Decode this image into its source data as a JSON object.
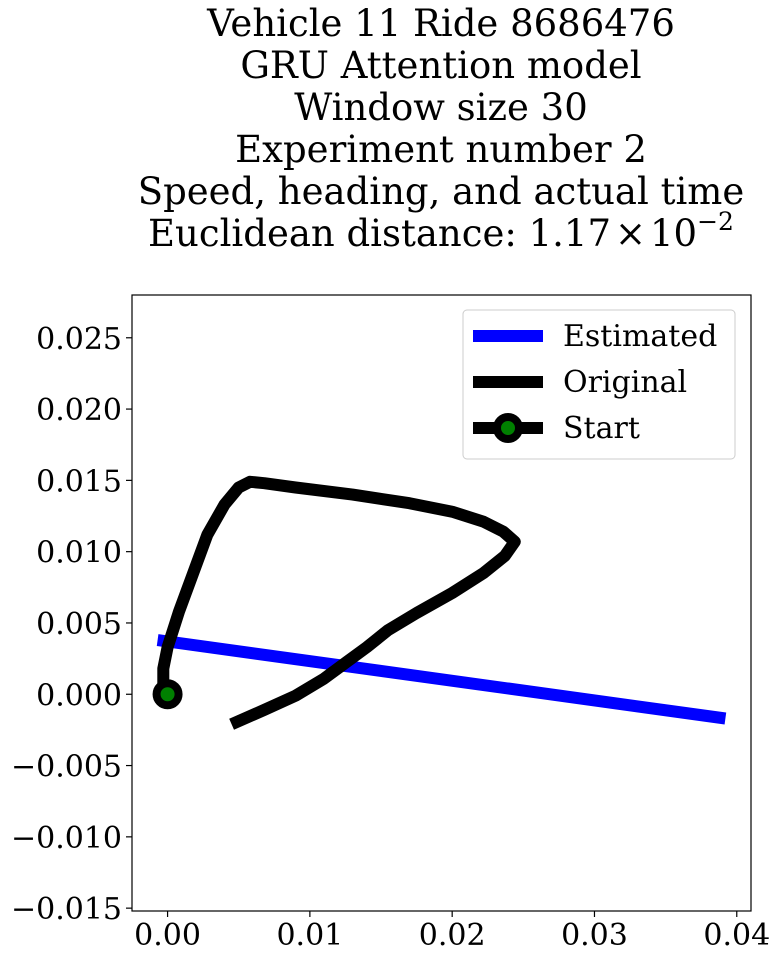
{
  "chart_data": {
    "type": "line",
    "title_lines": [
      "Vehicle 11 Ride 8686476",
      "GRU Attention model",
      "Window size 30",
      "Experiment number 2",
      "Speed, heading, and actual time"
    ],
    "title_last_line": {
      "prefix": "Euclidean distance: ",
      "mantissa": "1.17",
      "times": "×",
      "base": "10",
      "exponent": "−2"
    },
    "xlabel": "",
    "ylabel": "",
    "xlim": [
      -0.0025,
      0.041
    ],
    "ylim": [
      -0.0152,
      0.028
    ],
    "x_ticks": [
      {
        "value": 0.0,
        "label": "0.00"
      },
      {
        "value": 0.01,
        "label": "0.01"
      },
      {
        "value": 0.02,
        "label": "0.02"
      },
      {
        "value": 0.03,
        "label": "0.03"
      },
      {
        "value": 0.04,
        "label": "0.04"
      }
    ],
    "y_ticks": [
      {
        "value": 0.025,
        "label": "0.025"
      },
      {
        "value": 0.02,
        "label": "0.020"
      },
      {
        "value": 0.015,
        "label": "0.015"
      },
      {
        "value": 0.01,
        "label": "0.010"
      },
      {
        "value": 0.005,
        "label": "0.005"
      },
      {
        "value": 0.0,
        "label": "0.000"
      },
      {
        "value": -0.005,
        "label": "−0.005"
      },
      {
        "value": -0.01,
        "label": "−0.010"
      },
      {
        "value": -0.015,
        "label": "−0.015"
      }
    ],
    "grid": false,
    "legend_position": "top-right",
    "series": [
      {
        "name": "Estimated",
        "color": "#0000ff",
        "points": [
          [
            -0.0007,
            0.0038
          ],
          [
            0.0392,
            -0.0017
          ]
        ]
      },
      {
        "name": "Original",
        "color": "#000000",
        "points": [
          [
            0.0,
            0.0
          ],
          [
            -0.0003,
            0.0008
          ],
          [
            -0.0003,
            0.0018
          ],
          [
            0.0,
            0.0033
          ],
          [
            0.0008,
            0.0058
          ],
          [
            0.0018,
            0.0085
          ],
          [
            0.0028,
            0.0112
          ],
          [
            0.004,
            0.0133
          ],
          [
            0.005,
            0.0145
          ],
          [
            0.0058,
            0.0149
          ],
          [
            0.0068,
            0.0148
          ],
          [
            0.009,
            0.0145
          ],
          [
            0.013,
            0.014
          ],
          [
            0.017,
            0.0134
          ],
          [
            0.02,
            0.0128
          ],
          [
            0.0222,
            0.0121
          ],
          [
            0.0236,
            0.0114
          ],
          [
            0.0244,
            0.0107
          ],
          [
            0.0237,
            0.0097
          ],
          [
            0.0222,
            0.0085
          ],
          [
            0.02,
            0.0071
          ],
          [
            0.0175,
            0.0057
          ],
          [
            0.0155,
            0.0045
          ],
          [
            0.014,
            0.0033
          ],
          [
            0.0125,
            0.0022
          ],
          [
            0.011,
            0.0011
          ],
          [
            0.009,
            -0.0001
          ],
          [
            0.0068,
            -0.0011
          ],
          [
            0.0045,
            -0.0021
          ]
        ]
      },
      {
        "name": "Start",
        "color": "#000000",
        "marker_face": "#008000",
        "points": [
          [
            0.0,
            0.0
          ]
        ]
      }
    ],
    "legend": [
      {
        "label": "Estimated",
        "color": "#0000ff",
        "marker": false
      },
      {
        "label": "Original",
        "color": "#000000",
        "marker": false
      },
      {
        "label": "Start",
        "color": "#000000",
        "marker": true,
        "marker_face": "#008000"
      }
    ]
  }
}
